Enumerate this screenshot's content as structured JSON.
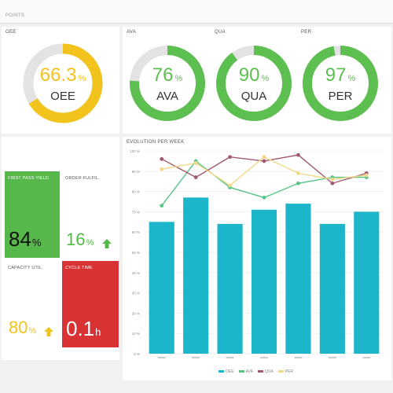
{
  "header": {
    "title": "POINTS"
  },
  "oee_panel": {
    "title": "OEE",
    "gauge": {
      "value": "66.3",
      "unit": "%",
      "name": "OEE",
      "fraction": 0.663,
      "color": "#f2c31c"
    }
  },
  "ava_panel": {
    "title": "AVA",
    "gauge": {
      "value": "76",
      "unit": "%",
      "name": "AVA",
      "fraction": 0.76,
      "color": "#5cbf4f"
    }
  },
  "qua_panel": {
    "title": "QUA",
    "gauge": {
      "value": "90",
      "unit": "%",
      "name": "QUA",
      "fraction": 0.9,
      "color": "#5cbf4f"
    }
  },
  "per_panel": {
    "title": "PER",
    "gauge": {
      "value": "97",
      "unit": "%",
      "name": "PER",
      "fraction": 0.97,
      "color": "#5cbf4f"
    }
  },
  "kpis": {
    "first_pass": {
      "title": "FIRST PASS YIELD",
      "value": "84",
      "unit": "%",
      "bg": "#56b84a"
    },
    "order_fulfil": {
      "title": "ORDER FULFIL.",
      "value": "16",
      "unit": "%",
      "color": "#56b84a",
      "trend": "up-arrow-icon"
    },
    "capacity": {
      "title": "CAPACITY UTIL.",
      "value": "80",
      "unit": "%",
      "color": "#f2c31c",
      "trend": "up-arrow-icon"
    },
    "cycle_time": {
      "title": "CYCLE TIME",
      "value": "0.1",
      "unit": "h",
      "bg": "#d83234"
    }
  },
  "chart_panel": {
    "title": "EVOLUTION PER WEEK"
  },
  "chart_data": {
    "type": "bar",
    "categories": [
      "",
      "",
      "",
      "",
      "",
      "",
      ""
    ],
    "ylim": [
      0,
      100
    ],
    "yticks": [
      "0 %",
      "10 %",
      "20 %",
      "30 %",
      "40 %",
      "50 %",
      "60 %",
      "70 %",
      "80 %",
      "90 %",
      "100 %"
    ],
    "grid": true,
    "legend_position": "bottom",
    "series": [
      {
        "name": "OEE",
        "kind": "bar",
        "color": "#1cb5c9",
        "values": [
          65,
          77,
          64,
          71,
          74,
          64,
          70
        ]
      },
      {
        "name": "AVA",
        "kind": "line",
        "color": "#58c486",
        "values": [
          73,
          95,
          82,
          77,
          84,
          87,
          87
        ]
      },
      {
        "name": "QUA",
        "kind": "line",
        "color": "#a0596e",
        "values": [
          96,
          87,
          97,
          95,
          98,
          84,
          89
        ]
      },
      {
        "name": "PER",
        "kind": "line",
        "color": "#f1d98a",
        "values": [
          91,
          94,
          83,
          97,
          89,
          86,
          88
        ]
      }
    ]
  }
}
